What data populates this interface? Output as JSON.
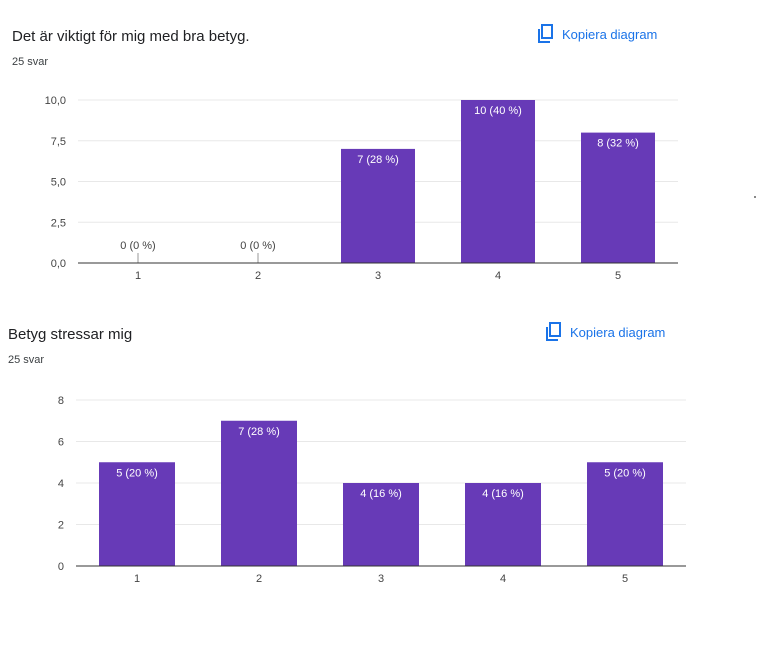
{
  "colors": {
    "bar": "#673ab7",
    "accent": "#1a73e8",
    "grid": "#e8e8e8",
    "axis": "#333333"
  },
  "charts": [
    {
      "title": "Det är viktigt för mig med bra betyg.",
      "count": "25 svar",
      "copy_label": "Kopiera diagram",
      "copy_icon": "copy-icon"
    },
    {
      "title": "Betyg stressar mig",
      "count": "25 svar",
      "copy_label": "Kopiera diagram",
      "copy_icon": "copy-icon"
    }
  ],
  "chart_data": [
    {
      "type": "bar",
      "title": "Det är viktigt för mig med bra betyg.",
      "categories": [
        "1",
        "2",
        "3",
        "4",
        "5"
      ],
      "values": [
        0,
        0,
        7,
        10,
        8
      ],
      "data_labels": [
        "0 (0 %)",
        "0 (0 %)",
        "7 (28 %)",
        "10 (40 %)",
        "8 (32 %)"
      ],
      "ylim": [
        0,
        10
      ],
      "yticks": [
        "0,0",
        "2,5",
        "5,0",
        "7,5",
        "10,0"
      ],
      "ytick_values": [
        0,
        2.5,
        5,
        7.5,
        10
      ],
      "grid": true,
      "legend": "none"
    },
    {
      "type": "bar",
      "title": "Betyg stressar mig",
      "categories": [
        "1",
        "2",
        "3",
        "4",
        "5"
      ],
      "values": [
        5,
        7,
        4,
        4,
        5
      ],
      "data_labels": [
        "5 (20 %)",
        "7 (28 %)",
        "4 (16 %)",
        "4 (16 %)",
        "5 (20 %)"
      ],
      "ylim": [
        0,
        8
      ],
      "yticks": [
        "0",
        "2",
        "4",
        "6",
        "8"
      ],
      "ytick_values": [
        0,
        2,
        4,
        6,
        8
      ],
      "grid": true,
      "legend": "none"
    }
  ]
}
